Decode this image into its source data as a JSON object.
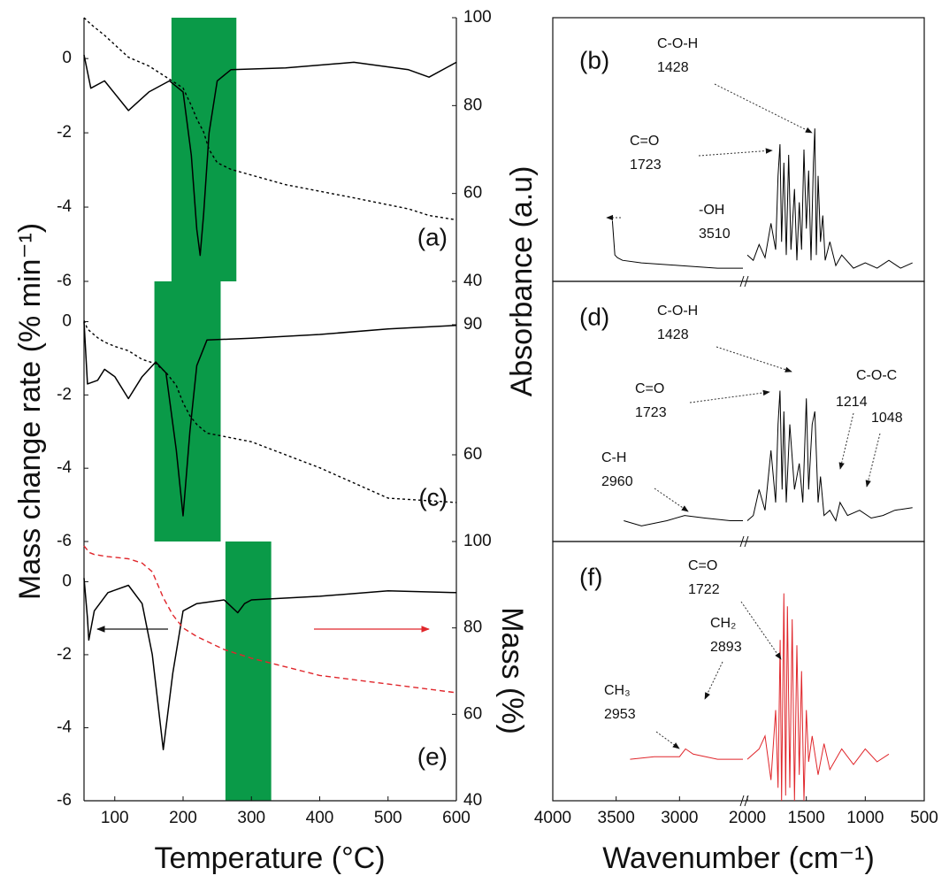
{
  "chart_data": [
    {
      "type": "line",
      "label": "(a)",
      "ylabel": null,
      "y2label": "Absorbance (a.u)",
      "x": [
        55,
        65,
        85,
        120,
        150,
        180,
        200,
        212,
        220,
        225,
        230,
        238,
        250,
        270,
        350,
        450,
        530,
        560,
        600
      ],
      "series": [
        {
          "color": "#000000",
          "style": "solid",
          "axis": "y",
          "values": [
            0.1,
            -0.8,
            -0.6,
            -1.4,
            -0.9,
            -0.6,
            -0.9,
            -2.6,
            -4.6,
            -5.3,
            -4.2,
            -2,
            -0.6,
            -0.3,
            -0.25,
            -0.1,
            -0.3,
            -0.5,
            -0.1
          ]
        },
        {
          "color": "#000000",
          "style": "dashed",
          "axis": "y2",
          "values": [
            100,
            98.5,
            96,
            91,
            89,
            86,
            84,
            80,
            77,
            75.5,
            74,
            70,
            67,
            65.5,
            62,
            59,
            56.5,
            55,
            54
          ]
        }
      ],
      "highlight": [
        183,
        278
      ],
      "highlight_color": "#0a9a48",
      "xlim": [
        55,
        600
      ],
      "ylim": [
        -6,
        1.1
      ],
      "yticks": [
        0,
        -2,
        -4,
        -6
      ],
      "y2lim": [
        40,
        100
      ],
      "y2ticks": [
        40,
        60,
        80,
        100
      ]
    },
    {
      "type": "line",
      "label": "(c)",
      "ylabel": "Mass change rate (% min⁻¹)",
      "x": [
        55,
        60,
        75,
        85,
        100,
        120,
        140,
        160,
        175,
        190,
        200,
        210,
        220,
        235,
        300,
        400,
        500,
        600
      ],
      "series": [
        {
          "color": "#000000",
          "style": "solid",
          "axis": "y",
          "values": [
            0,
            -1.7,
            -1.6,
            -1.3,
            -1.5,
            -2.1,
            -1.5,
            -1.1,
            -1.4,
            -3.5,
            -5.3,
            -3,
            -1.2,
            -0.5,
            -0.45,
            -0.35,
            -0.2,
            -0.1
          ]
        },
        {
          "color": "#000000",
          "style": "dashed",
          "axis": "y2",
          "values": [
            91,
            89,
            87,
            86,
            85,
            84,
            82,
            81,
            79,
            76,
            72,
            69,
            67,
            65,
            63,
            57,
            50,
            49
          ]
        }
      ],
      "highlight": [
        158,
        255
      ],
      "highlight_color": "#0a9a48",
      "xlim": [
        55,
        600
      ],
      "ylim": [
        -6,
        1.1
      ],
      "yticks": [
        0,
        -2,
        -4,
        -6
      ],
      "y2lim": [
        40,
        100
      ],
      "y2ticks": [
        60,
        90
      ]
    },
    {
      "type": "line",
      "label": "(e)",
      "xlabel": "Temperature (°C)",
      "y2label": "Mass (%)",
      "x": [
        55,
        60,
        62,
        70,
        90,
        120,
        140,
        155,
        171,
        185,
        200,
        220,
        260,
        280,
        290,
        300,
        400,
        500,
        600
      ],
      "series": [
        {
          "color": "#000000",
          "style": "solid",
          "axis": "y",
          "values": [
            0.1,
            -1,
            -1.6,
            -0.8,
            -0.3,
            -0.1,
            -0.6,
            -2,
            -4.6,
            -2.5,
            -0.8,
            -0.6,
            -0.5,
            -0.85,
            -0.6,
            -0.5,
            -0.4,
            -0.25,
            -0.3
          ]
        },
        {
          "color": "#e0262b",
          "style": "dashed",
          "axis": "y2",
          "values": [
            99,
            98,
            97.5,
            97,
            96.5,
            96,
            95,
            93,
            87,
            83,
            80,
            78,
            75,
            74,
            73.5,
            73,
            69,
            67,
            65
          ]
        }
      ],
      "highlight": [
        262,
        329
      ],
      "highlight_color": "#0a9a48",
      "xlim": [
        55,
        600
      ],
      "xticks": [
        100,
        200,
        300,
        400,
        500,
        600
      ],
      "ylim": [
        -6,
        1.1
      ],
      "yticks": [
        0,
        -2,
        -4,
        -6
      ],
      "y2lim": [
        40,
        100
      ],
      "y2ticks": [
        40,
        60,
        80,
        100
      ]
    },
    {
      "type": "spectrum",
      "label": "(b)",
      "color": "#000000",
      "x": [
        3530,
        3510,
        3490,
        3450,
        3300,
        3000,
        2700,
        2500,
        2000,
        1950,
        1900,
        1850,
        1800,
        1760,
        1740,
        1723,
        1710,
        1690,
        1670,
        1650,
        1630,
        1600,
        1580,
        1560,
        1540,
        1520,
        1500,
        1480,
        1460,
        1440,
        1428,
        1415,
        1400,
        1380,
        1360,
        1340,
        1300,
        1250,
        1200,
        1100,
        1000,
        900,
        800,
        700,
        600
      ],
      "values": [
        23,
        10,
        9,
        8,
        7,
        6,
        5,
        5,
        10,
        8,
        14,
        9,
        22,
        12,
        40,
        52,
        15,
        45,
        10,
        48,
        12,
        35,
        8,
        30,
        12,
        50,
        20,
        42,
        8,
        45,
        58,
        10,
        40,
        15,
        25,
        8,
        15,
        6,
        10,
        5,
        7,
        5,
        8,
        5,
        7
      ],
      "xlim": [
        4000,
        500
      ],
      "xbreak": [
        2500,
        2000
      ],
      "ylim": [
        0,
        100
      ],
      "annotations": [
        {
          "lines": [
            "C-O-H",
            "1428"
          ]
        },
        {
          "lines": [
            "C=O",
            "1723"
          ]
        },
        {
          "lines": [
            "-OH",
            "3510"
          ]
        }
      ]
    },
    {
      "type": "spectrum",
      "label": "(d)",
      "color": "#000000",
      "x": [
        3440,
        3300,
        3100,
        2960,
        2800,
        2600,
        2500,
        2000,
        1950,
        1900,
        1850,
        1800,
        1760,
        1740,
        1723,
        1705,
        1690,
        1670,
        1640,
        1600,
        1560,
        1530,
        1500,
        1480,
        1450,
        1428,
        1400,
        1380,
        1350,
        1300,
        1250,
        1214,
        1150,
        1048,
        950,
        850,
        750,
        600
      ],
      "values": [
        8,
        6,
        8,
        10,
        9,
        8,
        8,
        8,
        10,
        20,
        12,
        35,
        15,
        45,
        58,
        20,
        50,
        15,
        45,
        20,
        30,
        15,
        55,
        20,
        45,
        50,
        15,
        25,
        10,
        12,
        8,
        15,
        10,
        12,
        9,
        10,
        12,
        13
      ],
      "xlim": [
        4000,
        500
      ],
      "xbreak": [
        2500,
        2000
      ],
      "ylim": [
        0,
        100
      ],
      "annotations": [
        {
          "lines": [
            "C-O-H",
            "1428"
          ]
        },
        {
          "lines": [
            "C=O",
            "1723"
          ]
        },
        {
          "lines": [
            "C-O-C"
          ]
        },
        {
          "lines": [
            "1214"
          ]
        },
        {
          "lines": [
            "1048"
          ]
        },
        {
          "lines": [
            "C-H",
            "2960"
          ]
        }
      ]
    },
    {
      "type": "spectrum",
      "label": "(f)",
      "color": "#e0262b",
      "xlabel": "Wavenumber (cm⁻¹)",
      "x": [
        3390,
        3200,
        3000,
        2953,
        2893,
        2700,
        2500,
        2000,
        1900,
        1850,
        1800,
        1760,
        1740,
        1722,
        1710,
        1690,
        1675,
        1660,
        1640,
        1620,
        1600,
        1580,
        1560,
        1540,
        1520,
        1500,
        1480,
        1450,
        1400,
        1350,
        1300,
        1200,
        1100,
        1000,
        900,
        800
      ],
      "values": [
        16,
        17,
        17,
        20,
        18,
        16,
        16,
        16,
        20,
        25,
        8,
        35,
        5,
        62,
        0,
        80,
        2,
        75,
        5,
        70,
        0,
        60,
        10,
        50,
        0,
        35,
        15,
        25,
        10,
        22,
        12,
        20,
        14,
        20,
        15,
        18
      ],
      "xlim": [
        4000,
        500
      ],
      "xbreak": [
        2500,
        2000
      ],
      "xticks": [
        4000,
        3500,
        3000,
        2000,
        1500,
        1000,
        500
      ],
      "ylim": [
        0,
        100
      ],
      "annotations": [
        {
          "lines": [
            "C=O",
            "1722"
          ]
        },
        {
          "lines": [
            "CH₂",
            "2893"
          ]
        },
        {
          "lines": [
            "CH₃",
            "2953"
          ]
        }
      ]
    }
  ]
}
